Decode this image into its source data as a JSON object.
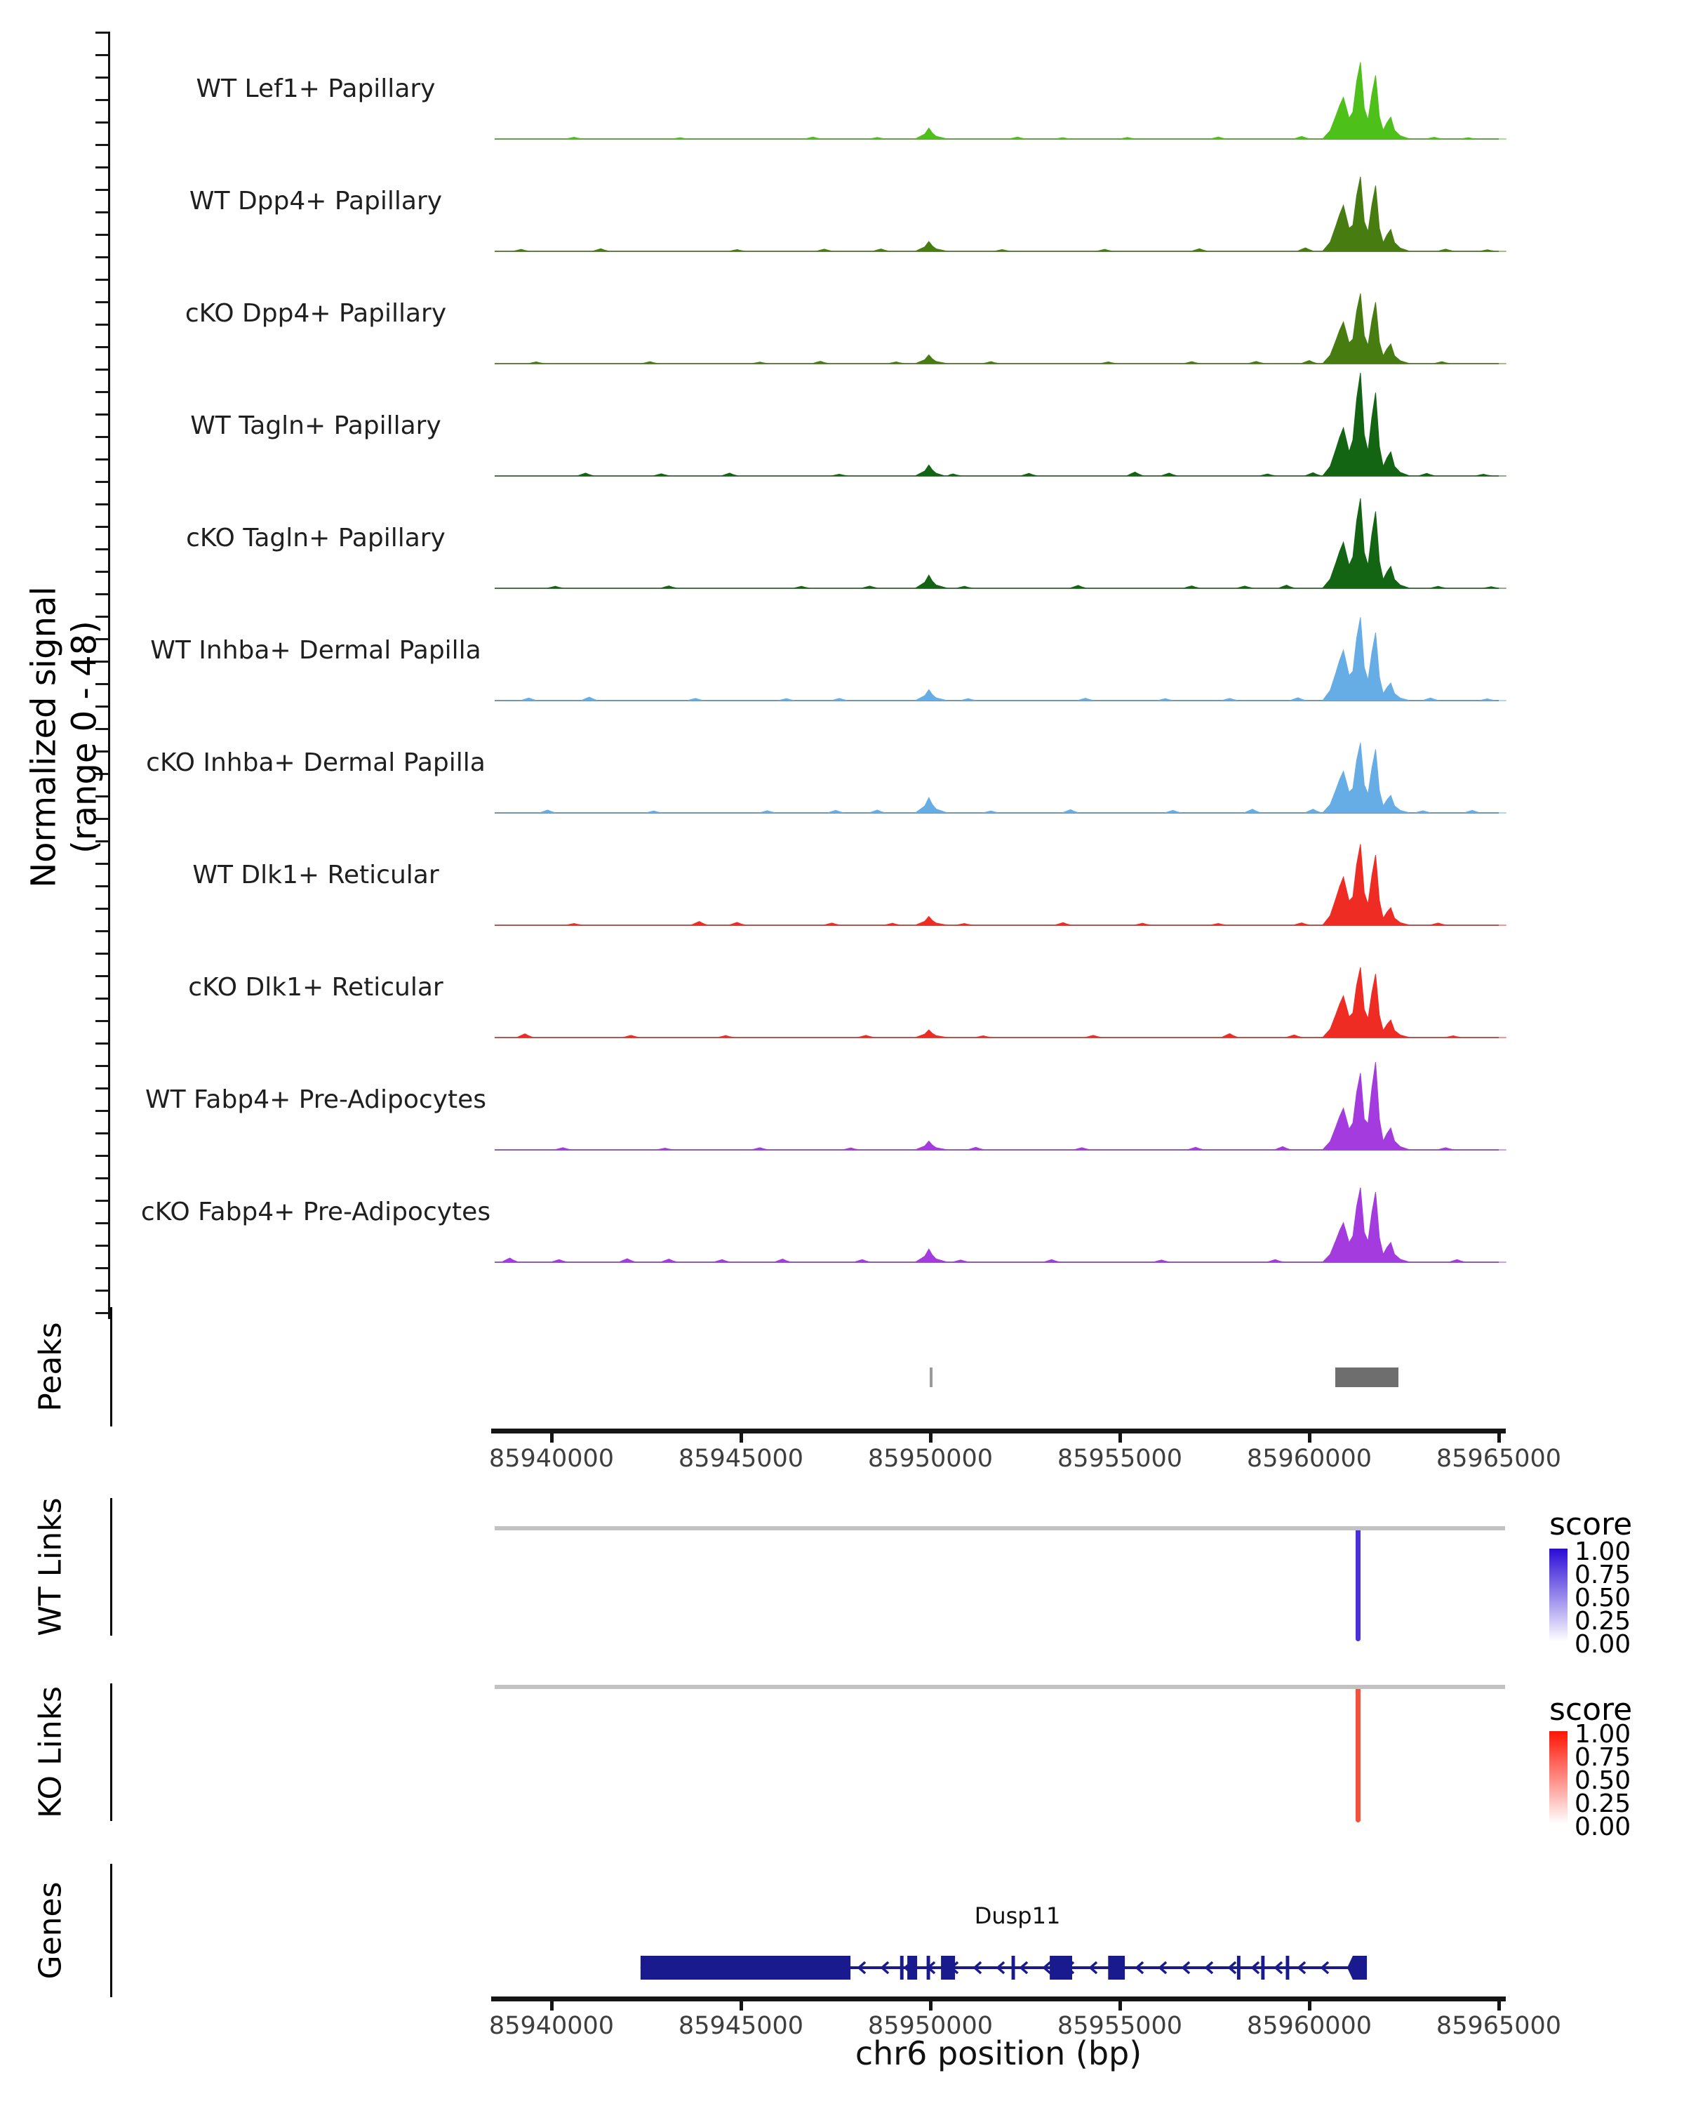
{
  "y_axis": {
    "label_line1": "Normalized signal",
    "label_line2": "(range 0 - 48)"
  },
  "sections": {
    "peaks": {
      "label": "Peaks"
    },
    "wt_links": {
      "label": "WT Links",
      "legend_title": "score",
      "legend_labels": [
        "1.00",
        "0.75",
        "0.50",
        "0.25",
        "0.00"
      ]
    },
    "ko_links": {
      "label": "KO Links",
      "legend_title": "score",
      "legend_labels": [
        "1.00",
        "0.75",
        "0.50",
        "0.25",
        "0.00"
      ]
    },
    "genes": {
      "label": "Genes"
    }
  },
  "chart_data": {
    "type": "area",
    "xlabel": "chr6 position (bp)",
    "ylabel": "Normalized signal (range 0 - 48)",
    "ylim": [
      0,
      48
    ],
    "region": {
      "chromosome": "chr6",
      "start": 85938500,
      "end": 85965200
    },
    "x_ticks": [
      85940000,
      85945000,
      85950000,
      85955000,
      85960000,
      85965000
    ],
    "signal_tracks": [
      {
        "label": "WT Lef1+ Papillary",
        "color": "#4DC019",
        "cluster_peaks": [
          [
            85960900,
            19
          ],
          [
            85961350,
            35
          ],
          [
            85961750,
            29
          ],
          [
            85962150,
            10
          ]
        ],
        "mid_peak": [
          85950000,
          5
        ],
        "noise": [
          [
            85940600,
            0.8
          ],
          [
            85943400,
            0.6
          ],
          [
            85946900,
            0.9
          ],
          [
            85948600,
            0.7
          ],
          [
            85952300,
            0.9
          ],
          [
            85953500,
            0.6
          ],
          [
            85955200,
            0.7
          ],
          [
            85957600,
            0.9
          ],
          [
            85959800,
            1.2
          ],
          [
            85963300,
            0.8
          ],
          [
            85964200,
            0.6
          ]
        ]
      },
      {
        "label": "WT Dpp4+ Papillary",
        "color": "#477C10",
        "cluster_peaks": [
          [
            85960900,
            21
          ],
          [
            85961350,
            34
          ],
          [
            85961750,
            30
          ],
          [
            85962150,
            10
          ]
        ],
        "mid_peak": [
          85950000,
          4.5
        ],
        "noise": [
          [
            85939200,
            0.9
          ],
          [
            85941300,
            1.2
          ],
          [
            85944900,
            0.8
          ],
          [
            85947200,
            1.0
          ],
          [
            85948700,
            1.1
          ],
          [
            85951900,
            0.8
          ],
          [
            85954600,
            0.9
          ],
          [
            85957100,
            1.2
          ],
          [
            85959900,
            1.6
          ],
          [
            85963600,
            1.0
          ],
          [
            85964700,
            0.7
          ]
        ]
      },
      {
        "label": "cKO Dpp4+ Papillary",
        "color": "#477C10",
        "cluster_peaks": [
          [
            85960900,
            19
          ],
          [
            85961350,
            32
          ],
          [
            85961750,
            28
          ],
          [
            85962150,
            9
          ]
        ],
        "mid_peak": [
          85950000,
          4
        ],
        "noise": [
          [
            85939600,
            0.8
          ],
          [
            85942600,
            0.9
          ],
          [
            85945500,
            0.7
          ],
          [
            85947100,
            1.1
          ],
          [
            85949100,
            0.8
          ],
          [
            85951600,
            0.9
          ],
          [
            85954700,
            0.8
          ],
          [
            85956900,
            0.9
          ],
          [
            85958600,
            1.0
          ],
          [
            85960000,
            1.4
          ],
          [
            85963500,
            0.9
          ]
        ]
      },
      {
        "label": "WT Tagln+ Papillary",
        "color": "#136413",
        "cluster_peaks": [
          [
            85960900,
            22
          ],
          [
            85961350,
            47
          ],
          [
            85961750,
            38
          ],
          [
            85962150,
            11
          ]
        ],
        "mid_peak": [
          85950000,
          5
        ],
        "noise": [
          [
            85940900,
            1.3
          ],
          [
            85942900,
            1.0
          ],
          [
            85944700,
            1.3
          ],
          [
            85947600,
            0.8
          ],
          [
            85950600,
            0.9
          ],
          [
            85952600,
            1.2
          ],
          [
            85955400,
            1.8
          ],
          [
            85956300,
            1.3
          ],
          [
            85958900,
            0.9
          ],
          [
            85960100,
            1.5
          ],
          [
            85963100,
            1.2
          ],
          [
            85964600,
            0.8
          ]
        ]
      },
      {
        "label": "cKO Tagln+ Papillary",
        "color": "#136413",
        "cluster_peaks": [
          [
            85960900,
            21
          ],
          [
            85961350,
            41
          ],
          [
            85961750,
            35
          ],
          [
            85962150,
            10
          ]
        ],
        "mid_peak": [
          85950000,
          6
        ],
        "noise": [
          [
            85940100,
            0.9
          ],
          [
            85943100,
            1.1
          ],
          [
            85946600,
            0.9
          ],
          [
            85948400,
            1.0
          ],
          [
            85950900,
            0.9
          ],
          [
            85953900,
            1.3
          ],
          [
            85956900,
            1.1
          ],
          [
            85958300,
            1.0
          ],
          [
            85959400,
            1.4
          ],
          [
            85963400,
            0.9
          ],
          [
            85964800,
            0.7
          ]
        ]
      },
      {
        "label": "WT Inhba+ Dermal Papilla",
        "color": "#66ADE5",
        "cluster_peaks": [
          [
            85960900,
            23
          ],
          [
            85961350,
            38
          ],
          [
            85961750,
            31
          ],
          [
            85962150,
            8
          ]
        ],
        "mid_peak": [
          85950000,
          5
        ],
        "noise": [
          [
            85939400,
            1.2
          ],
          [
            85941000,
            1.6
          ],
          [
            85943800,
            1.0
          ],
          [
            85946200,
            0.9
          ],
          [
            85947600,
            1.0
          ],
          [
            85951000,
            0.9
          ],
          [
            85954100,
            1.1
          ],
          [
            85956200,
            0.9
          ],
          [
            85957900,
            1.0
          ],
          [
            85959700,
            1.3
          ],
          [
            85963200,
            1.2
          ],
          [
            85964700,
            0.8
          ]
        ]
      },
      {
        "label": "cKO Inhba+ Dermal Papilla",
        "color": "#66ADE5",
        "cluster_peaks": [
          [
            85960900,
            19
          ],
          [
            85961350,
            32
          ],
          [
            85961750,
            29
          ],
          [
            85962150,
            8
          ]
        ],
        "mid_peak": [
          85950000,
          7
        ],
        "noise": [
          [
            85939900,
            1.3
          ],
          [
            85942700,
            0.9
          ],
          [
            85945700,
            1.0
          ],
          [
            85947500,
            1.2
          ],
          [
            85948600,
            1.3
          ],
          [
            85951600,
            0.9
          ],
          [
            85953700,
            1.5
          ],
          [
            85956400,
            1.2
          ],
          [
            85958500,
            1.7
          ],
          [
            85960100,
            1.7
          ],
          [
            85963000,
            1.0
          ],
          [
            85964300,
            1.2
          ]
        ]
      },
      {
        "label": "WT Dlk1+ Reticular",
        "color": "#EE2C23",
        "cluster_peaks": [
          [
            85960900,
            22
          ],
          [
            85961350,
            37
          ],
          [
            85961750,
            32
          ],
          [
            85962150,
            8
          ]
        ],
        "mid_peak": [
          85950000,
          4
        ],
        "noise": [
          [
            85940600,
            0.8
          ],
          [
            85943900,
            1.7
          ],
          [
            85944900,
            1.3
          ],
          [
            85947400,
            1.0
          ],
          [
            85949000,
            0.9
          ],
          [
            85950900,
            0.8
          ],
          [
            85953500,
            1.2
          ],
          [
            85955600,
            0.9
          ],
          [
            85957600,
            0.8
          ],
          [
            85959800,
            1.1
          ],
          [
            85963400,
            1.0
          ]
        ]
      },
      {
        "label": "cKO Dlk1+ Reticular",
        "color": "#EE2C23",
        "cluster_peaks": [
          [
            85960900,
            19
          ],
          [
            85961350,
            32
          ],
          [
            85961750,
            29
          ],
          [
            85962150,
            8
          ]
        ],
        "mid_peak": [
          85950000,
          3.5
        ],
        "noise": [
          [
            85939300,
            1.7
          ],
          [
            85942100,
            1.0
          ],
          [
            85944600,
            0.9
          ],
          [
            85948300,
            1.0
          ],
          [
            85951400,
            0.8
          ],
          [
            85954300,
            1.0
          ],
          [
            85957900,
            1.8
          ],
          [
            85959600,
            1.2
          ],
          [
            85963800,
            0.8
          ]
        ]
      },
      {
        "label": "WT Fabp4+ Pre-Adipocytes",
        "color": "#A33BDF",
        "cluster_peaks": [
          [
            85960900,
            19
          ],
          [
            85961350,
            35
          ],
          [
            85961750,
            40
          ],
          [
            85962150,
            10
          ]
        ],
        "mid_peak": [
          85950000,
          4
        ],
        "noise": [
          [
            85940300,
            1.0
          ],
          [
            85943000,
            0.8
          ],
          [
            85945500,
            1.0
          ],
          [
            85947900,
            0.9
          ],
          [
            85951200,
            1.2
          ],
          [
            85954000,
            1.0
          ],
          [
            85957000,
            1.2
          ],
          [
            85959300,
            1.5
          ],
          [
            85963600,
            1.0
          ]
        ]
      },
      {
        "label": "cKO Fabp4+ Pre-Adipocytes",
        "color": "#A33BDF",
        "cluster_peaks": [
          [
            85960900,
            18
          ],
          [
            85961350,
            34
          ],
          [
            85961750,
            32
          ],
          [
            85962150,
            9
          ]
        ],
        "mid_peak": [
          85950000,
          6
        ],
        "noise": [
          [
            85938900,
            1.9
          ],
          [
            85940200,
            1.2
          ],
          [
            85942000,
            1.6
          ],
          [
            85943100,
            1.4
          ],
          [
            85944500,
            1.2
          ],
          [
            85946100,
            1.4
          ],
          [
            85948200,
            1.2
          ],
          [
            85950800,
            1.0
          ],
          [
            85953200,
            1.2
          ],
          [
            85956100,
            1.0
          ],
          [
            85959100,
            1.2
          ],
          [
            85963900,
            1.2
          ]
        ]
      }
    ],
    "peaks": [
      {
        "start": 85949990,
        "end": 85950070,
        "color": "#9A9A9A"
      },
      {
        "start": 85960690,
        "end": 85962360,
        "color": "#6E6E6E"
      }
    ],
    "links": {
      "wt": {
        "position": 85961280,
        "score": 1.0,
        "color": "#4B2FD9",
        "gradient_top": "#2A0BD6"
      },
      "ko": {
        "position": 85961280,
        "score": 1.0,
        "color": "#F4503C",
        "gradient_top": "#FF1404"
      }
    },
    "gene": {
      "name": "Dusp11",
      "color": "#1A1A8F",
      "strand": "-",
      "body": [
        85942350,
        85961370
      ],
      "wide_exon": [
        85942350,
        85947890
      ],
      "exons": [
        [
          85949200,
          85949290
        ],
        [
          85949390,
          85949650
        ],
        [
          85949900,
          85949990
        ],
        [
          85950280,
          85950650
        ],
        [
          85952140,
          85952230
        ],
        [
          85953150,
          85953740
        ],
        [
          85954690,
          85955130
        ],
        [
          85958090,
          85958180
        ],
        [
          85958730,
          85958820
        ],
        [
          85959380,
          85959470
        ]
      ],
      "tss_arrow": [
        85961000,
        85961520
      ]
    }
  }
}
